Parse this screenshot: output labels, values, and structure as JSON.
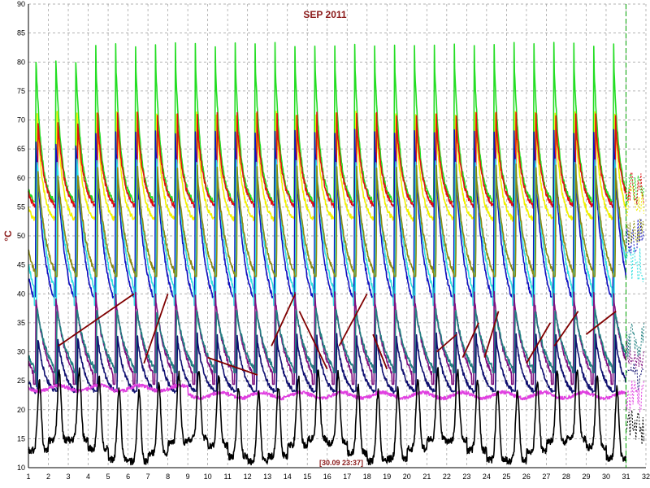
{
  "chart_data": {
    "type": "line",
    "title": "SEP 2011",
    "ylabel": "°C",
    "xlabel": "",
    "timestamp": "[30.09 23:37]",
    "xlim": [
      1,
      32
    ],
    "ylim": [
      10,
      90
    ],
    "x_ticks": [
      "1",
      "2",
      "3",
      "4",
      "5",
      "6",
      "7",
      "8",
      "9",
      "10",
      "11",
      "12",
      "13",
      "14",
      "15",
      "16",
      "17",
      "18",
      "19",
      "20",
      "21",
      "22",
      "23",
      "24",
      "25",
      "26",
      "27",
      "28",
      "29",
      "30",
      "31",
      "32"
    ],
    "y_ticks": [
      "10",
      "15",
      "20",
      "25",
      "30",
      "35",
      "40",
      "45",
      "50",
      "55",
      "60",
      "65",
      "70",
      "75",
      "80",
      "85",
      "90"
    ],
    "grid": true,
    "current_time_marker": 31,
    "colors": {
      "green": "#22dd22",
      "yellow": "#f0f000",
      "red": "#e01010",
      "blue": "#1010c0",
      "cyan": "#30e0e0",
      "olive": "#8a8a10",
      "purple": "#801080",
      "teal": "#208080",
      "navy": "#101070",
      "magenta": "#e040e0",
      "black": "#000000",
      "maroon": "#800000"
    },
    "series": [
      {
        "color_key": "green",
        "base": 58,
        "peak": 83,
        "min": 55,
        "sharp": 3.5
      },
      {
        "color_key": "yellow",
        "base": 56,
        "peak": 74,
        "min": 52,
        "sharp": 3.5
      },
      {
        "color_key": "red",
        "base": 58,
        "peak": 71,
        "min": 54,
        "sharp": 3.0
      },
      {
        "color_key": "blue",
        "base": 50,
        "peak": 68,
        "min": 35,
        "sharp": 2.2
      },
      {
        "color_key": "cyan",
        "base": 45,
        "peak": 65,
        "min": 35,
        "sharp": 1.8
      },
      {
        "color_key": "olive",
        "base": 50,
        "peak": 62,
        "min": 40,
        "sharp": 2.0
      },
      {
        "color_key": "purple",
        "base": 30,
        "peak": 40,
        "min": 22,
        "sharp": 1.6
      },
      {
        "color_key": "teal",
        "base": 32,
        "peak": 38,
        "min": 24,
        "sharp": 1.6
      },
      {
        "color_key": "navy",
        "base": 26,
        "peak": 33,
        "min": 22,
        "sharp": 2.5
      },
      {
        "color_key": "magenta",
        "base": 22.5,
        "peak": 23.5,
        "min": 22,
        "sharp": 1.0
      },
      {
        "color_key": "black",
        "base": 17,
        "peak": 25,
        "min": 13,
        "sharp": 1.3
      }
    ],
    "maroon_segments": [
      [
        [
          2.5,
          31
        ],
        [
          6.3,
          40
        ]
      ],
      [
        [
          6.8,
          28
        ],
        [
          8.0,
          40
        ]
      ],
      [
        [
          10.0,
          29
        ],
        [
          12.5,
          26
        ]
      ],
      [
        [
          13.2,
          31
        ],
        [
          14.4,
          40
        ]
      ],
      [
        [
          14.6,
          37
        ],
        [
          16.0,
          27
        ]
      ],
      [
        [
          16.6,
          31
        ],
        [
          18.0,
          40
        ]
      ],
      [
        [
          18.3,
          33
        ],
        [
          19.0,
          27
        ]
      ],
      [
        [
          21.5,
          30
        ],
        [
          22.5,
          33
        ]
      ],
      [
        [
          22.8,
          29
        ],
        [
          23.6,
          35
        ]
      ],
      [
        [
          23.9,
          29
        ],
        [
          24.6,
          37
        ]
      ],
      [
        [
          26.0,
          28
        ],
        [
          27.2,
          35
        ]
      ],
      [
        [
          27.4,
          31
        ],
        [
          28.6,
          37
        ]
      ],
      [
        [
          29.0,
          33
        ],
        [
          30.5,
          37
        ]
      ]
    ]
  }
}
